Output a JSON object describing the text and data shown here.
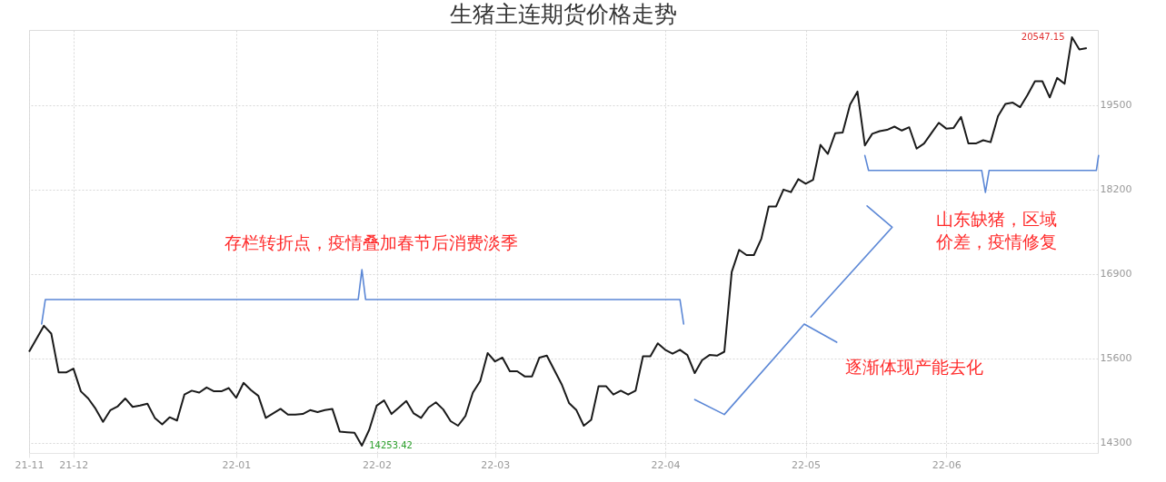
{
  "chart_data": {
    "type": "line",
    "title": "生猪主连期货价格走势",
    "categories": [
      "21-11",
      null,
      null,
      null,
      null,
      null,
      "21-12",
      null,
      null,
      null,
      null,
      null,
      null,
      null,
      null,
      null,
      null,
      null,
      null,
      null,
      null,
      null,
      null,
      null,
      null,
      null,
      null,
      null,
      "22-01",
      null,
      null,
      null,
      null,
      null,
      null,
      null,
      null,
      null,
      null,
      null,
      null,
      null,
      null,
      null,
      null,
      null,
      null,
      "22-02",
      null,
      null,
      null,
      null,
      null,
      null,
      null,
      null,
      null,
      null,
      null,
      null,
      null,
      null,
      null,
      "22-03",
      null,
      null,
      null,
      null,
      null,
      null,
      null,
      null,
      null,
      null,
      null,
      null,
      null,
      null,
      null,
      null,
      null,
      null,
      null,
      null,
      null,
      null,
      "22-04",
      null,
      null,
      null,
      null,
      null,
      null,
      null,
      null,
      null,
      null,
      null,
      null,
      null,
      null,
      null,
      null,
      null,
      null,
      "22-05",
      null,
      null,
      null,
      null,
      null,
      null,
      null,
      null,
      null,
      null,
      null,
      null,
      null,
      null,
      null,
      null,
      null,
      null,
      "22-06",
      null,
      null,
      null,
      null,
      null,
      null,
      null,
      null,
      null,
      null,
      null,
      null,
      null,
      null,
      null,
      null,
      null,
      null,
      null
    ],
    "series": [
      {
        "color": "#1a1a1a",
        "values": [
          15700,
          15900,
          16100,
          15980,
          15380,
          15380,
          15440,
          15090,
          14980,
          14820,
          14620,
          14800,
          14860,
          14980,
          14850,
          14870,
          14900,
          14680,
          14580,
          14690,
          14640,
          15040,
          15100,
          15070,
          15150,
          15090,
          15090,
          15140,
          14990,
          15220,
          15110,
          15020,
          14680,
          14750,
          14820,
          14730,
          14730,
          14740,
          14800,
          14770,
          14800,
          14820,
          14470,
          14460,
          14450,
          14253.42,
          14500,
          14870,
          14950,
          14740,
          14840,
          14940,
          14750,
          14680,
          14840,
          14920,
          14810,
          14630,
          14560,
          14710,
          15070,
          15250,
          15680,
          15550,
          15610,
          15400,
          15400,
          15320,
          15320,
          15610,
          15640,
          15420,
          15200,
          14910,
          14800,
          14560,
          14650,
          15170,
          15170,
          15040,
          15100,
          15040,
          15100,
          15630,
          15630,
          15830,
          15730,
          15670,
          15730,
          15650,
          15370,
          15570,
          15650,
          15640,
          15700,
          16930,
          17270,
          17190,
          17190,
          17440,
          17940,
          17940,
          18200,
          18160,
          18360,
          18290,
          18350,
          18890,
          18750,
          19070,
          19080,
          19510,
          19710,
          18880,
          19060,
          19100,
          19120,
          19170,
          19110,
          19160,
          18830,
          18910,
          19070,
          19230,
          19140,
          19150,
          19320,
          18910,
          18910,
          18960,
          18930,
          19330,
          19520,
          19540,
          19470,
          19660,
          19870,
          19870,
          19620,
          19920,
          19830,
          20547.15,
          20360,
          20380
        ]
      }
    ],
    "ylim": [
      14140,
      20660
    ],
    "yticks": [
      14300,
      15600,
      16900,
      18200,
      19500
    ],
    "grid": true,
    "marker": "none",
    "line_style": "solid",
    "annotations": [
      "14253.42",
      "20547.15",
      "存栏转折点，疫情叠加春节后消费淡季",
      "山东缺猪，区域价差，疫情修复",
      "逐渐体现产能去化"
    ]
  }
}
